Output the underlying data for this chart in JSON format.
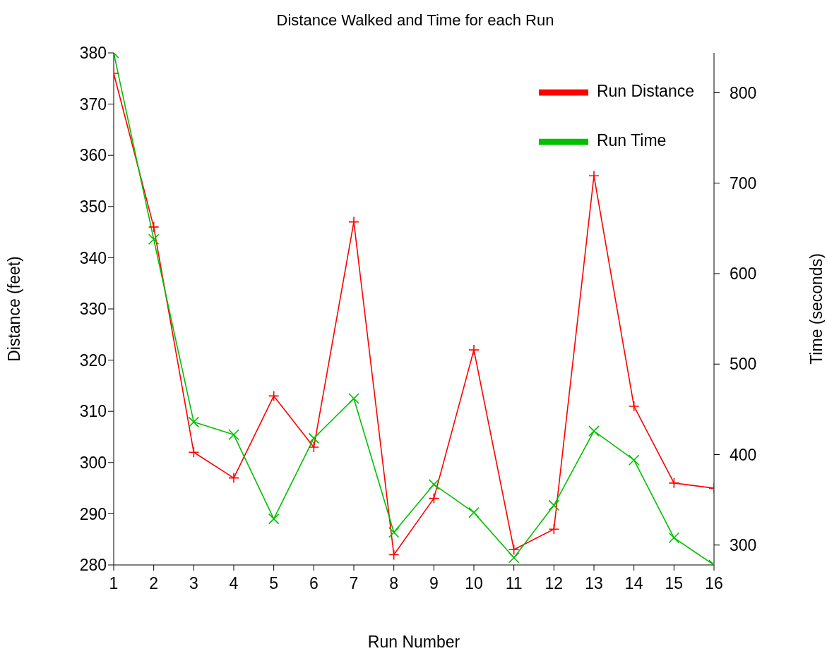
{
  "chart_data": {
    "type": "line",
    "title": "Distance Walked and Time for each Run",
    "xlabel": "Run Number",
    "ylabel": "Distance (feet)",
    "y2label": "Time (seconds)",
    "x": [
      1,
      2,
      3,
      4,
      5,
      6,
      7,
      8,
      9,
      10,
      11,
      12,
      13,
      14,
      15,
      16
    ],
    "xlim": [
      1,
      16
    ],
    "xticks": [
      1,
      2,
      3,
      4,
      5,
      6,
      7,
      8,
      9,
      10,
      11,
      12,
      13,
      14,
      15,
      16
    ],
    "ylim": [
      280,
      380
    ],
    "yticks": [
      280,
      290,
      300,
      310,
      320,
      330,
      340,
      350,
      360,
      370,
      380
    ],
    "y2lim": [
      278,
      844
    ],
    "y2ticks": [
      300,
      400,
      500,
      600,
      700,
      800
    ],
    "grid": false,
    "legend": "top right",
    "marker": "cross",
    "line_style": "solid",
    "series": [
      {
        "name": "Run Distance",
        "color": "#ff0000",
        "values": [
          376,
          346,
          302,
          297,
          313,
          303,
          347,
          282,
          293,
          322,
          283,
          287,
          356,
          311,
          296,
          295
        ]
      },
      {
        "name": "Run Time",
        "color": "#00c000",
        "axis": "y2",
        "values": [
          844,
          638,
          436,
          422,
          329,
          418,
          462,
          314,
          367,
          336,
          286,
          344,
          426,
          394,
          308,
          278
        ]
      }
    ]
  }
}
